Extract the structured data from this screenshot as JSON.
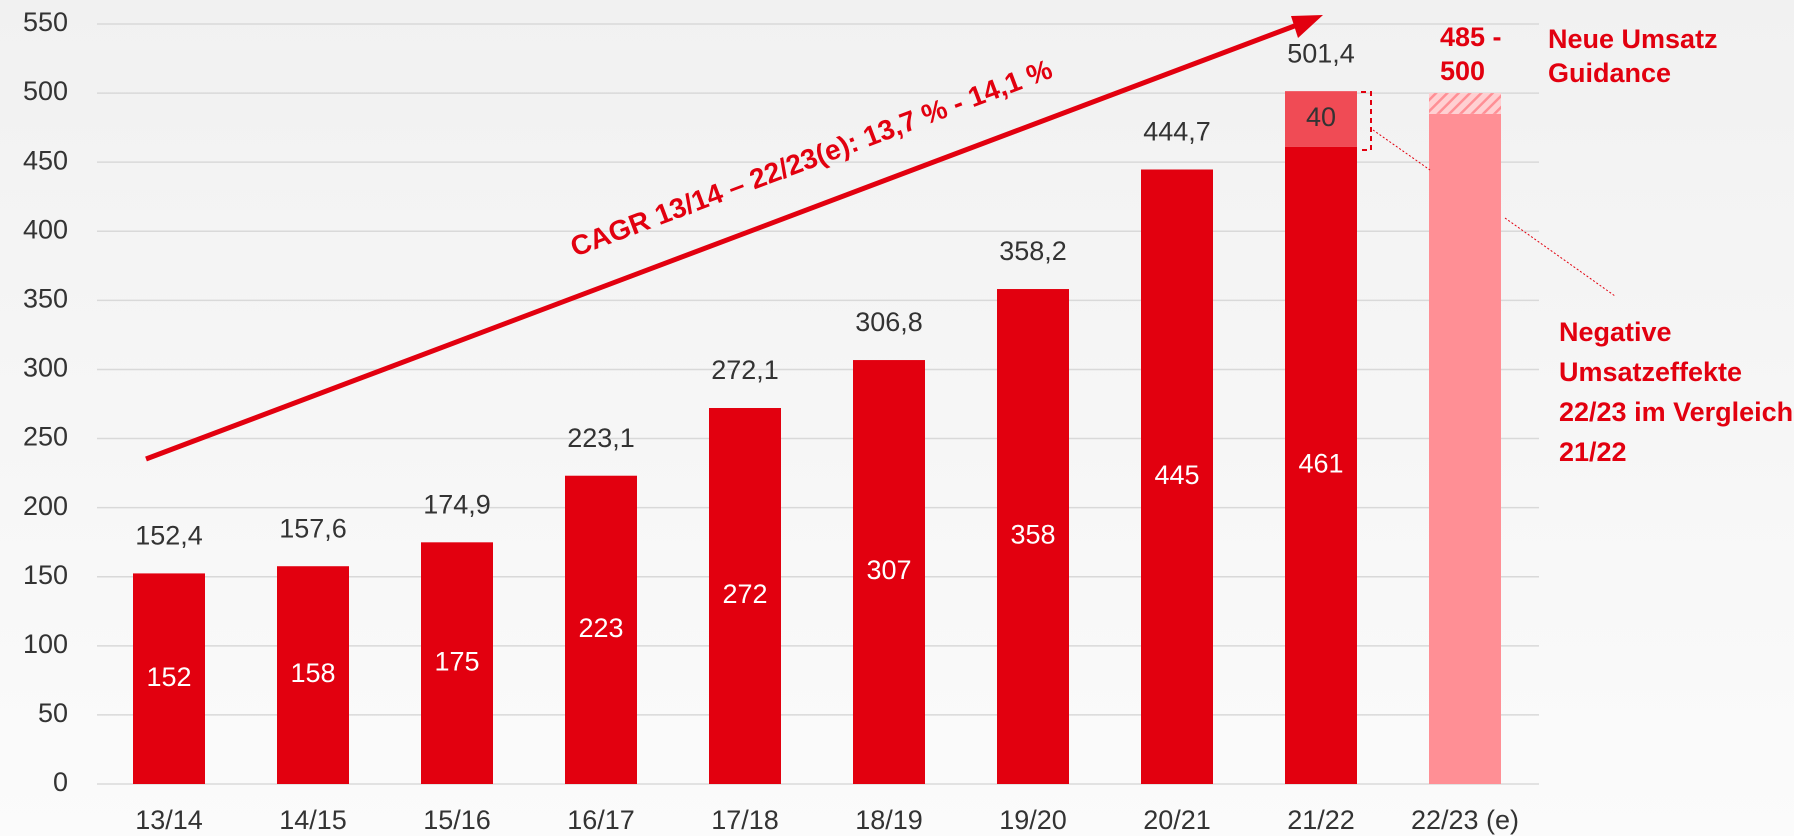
{
  "chart_data": {
    "type": "bar",
    "categories": [
      "13/14",
      "14/15",
      "15/16",
      "16/17",
      "17/18",
      "18/19",
      "19/20",
      "20/21",
      "21/22",
      "22/23 (e)"
    ],
    "series": [
      {
        "color": "#e2000f",
        "values": [
          152.4,
          157.6,
          174.9,
          223.1,
          272.1,
          306.8,
          358.2,
          444.7,
          461,
          null
        ],
        "value_labels": [
          "152",
          "158",
          "175",
          "223",
          "272",
          "307",
          "358",
          "445",
          "461",
          null
        ]
      },
      {
        "color": "#f04b55",
        "values": [
          null,
          null,
          null,
          null,
          null,
          null,
          null,
          null,
          40.4,
          null
        ],
        "value_labels": [
          null,
          null,
          null,
          null,
          null,
          null,
          null,
          null,
          "40",
          null
        ]
      },
      {
        "color": "#ff8f95",
        "values": [
          null,
          null,
          null,
          null,
          null,
          null,
          null,
          null,
          null,
          485
        ]
      },
      {
        "color": "#ff8f95",
        "hatch": true,
        "values": [
          null,
          null,
          null,
          null,
          null,
          null,
          null,
          null,
          null,
          15
        ]
      }
    ],
    "top_labels": [
      "152,4",
      "157,6",
      "174,9",
      "223,1",
      "272,1",
      "306,8",
      "358,2",
      "444,7",
      "501,4",
      null
    ],
    "ylim": [
      0,
      550
    ],
    "yticks": [
      0,
      50,
      100,
      150,
      200,
      250,
      300,
      350,
      400,
      450,
      500,
      550
    ],
    "grid": true,
    "annotations": {
      "cagr": "CAGR 13/14 – 22/23(e): 13,7 % - 14,1 %",
      "range": "485 - 500",
      "guidance": "Neue Umsatz Guidance",
      "effects": "Negative Umsatzeffekte 22/23 im Vergleich 21/22"
    }
  }
}
